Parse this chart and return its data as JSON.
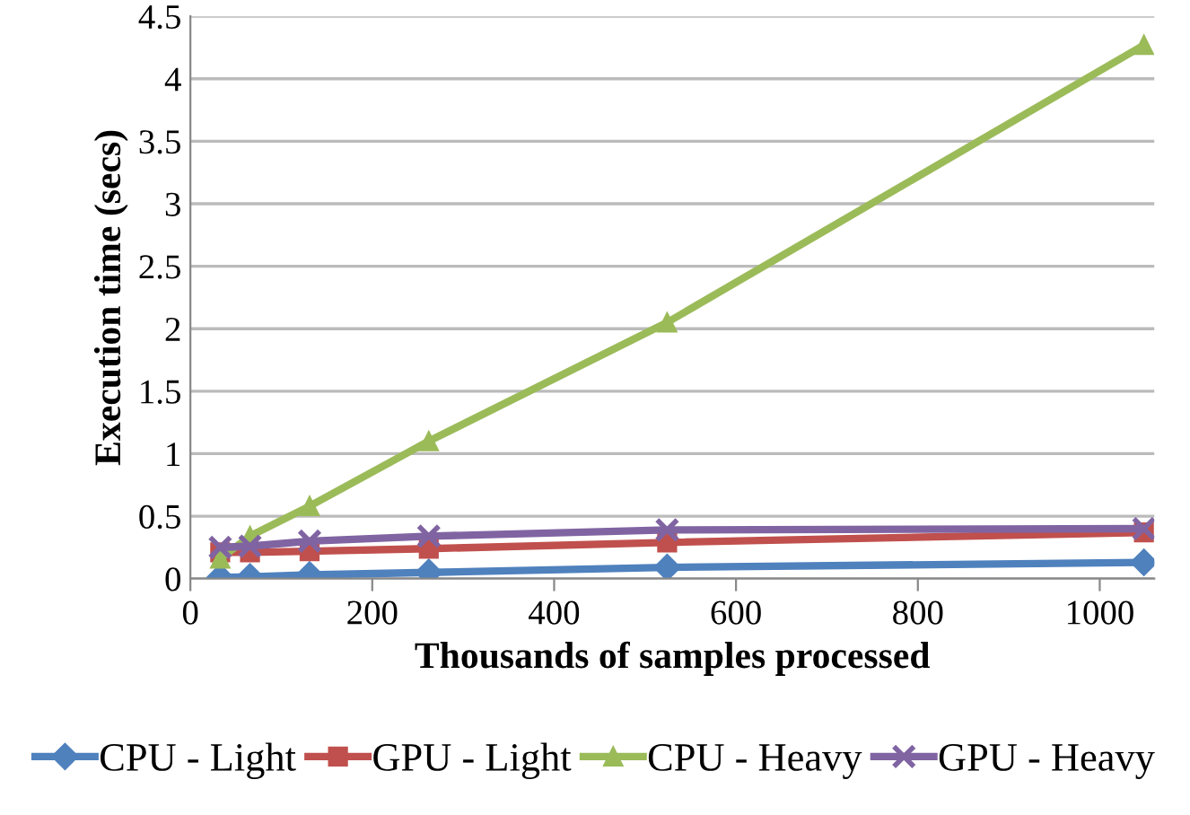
{
  "chart_data": {
    "type": "line",
    "xlabel": "Thousands of samples processed",
    "ylabel": "Execution time (secs)",
    "x": [
      32.768,
      65.536,
      131.072,
      262.144,
      524.288,
      1048.576
    ],
    "series": [
      {
        "name": "CPU - Light",
        "color": "#4f81bd",
        "marker": "diamond",
        "values": [
          0.01,
          0.015,
          0.03,
          0.05,
          0.09,
          0.13
        ]
      },
      {
        "name": "GPU - Light",
        "color": "#c0504d",
        "marker": "square",
        "values": [
          0.21,
          0.21,
          0.22,
          0.24,
          0.29,
          0.37
        ]
      },
      {
        "name": "CPU - Heavy",
        "color": "#9bbb59",
        "marker": "triangle",
        "values": [
          0.16,
          0.34,
          0.58,
          1.1,
          2.05,
          4.27
        ]
      },
      {
        "name": "GPU - Heavy",
        "color": "#8064a2",
        "marker": "cross",
        "values": [
          0.25,
          0.26,
          0.3,
          0.34,
          0.39,
          0.4
        ]
      }
    ],
    "xlim": [
      0,
      1060
    ],
    "xticks": [
      0,
      200,
      400,
      600,
      800,
      1000
    ],
    "ylim": [
      0,
      4.5
    ],
    "yticks": [
      0,
      0.5,
      1,
      1.5,
      2,
      2.5,
      3,
      3.5,
      4,
      4.5
    ],
    "grid": "y",
    "legend": "bottom",
    "line_style": "solid"
  }
}
